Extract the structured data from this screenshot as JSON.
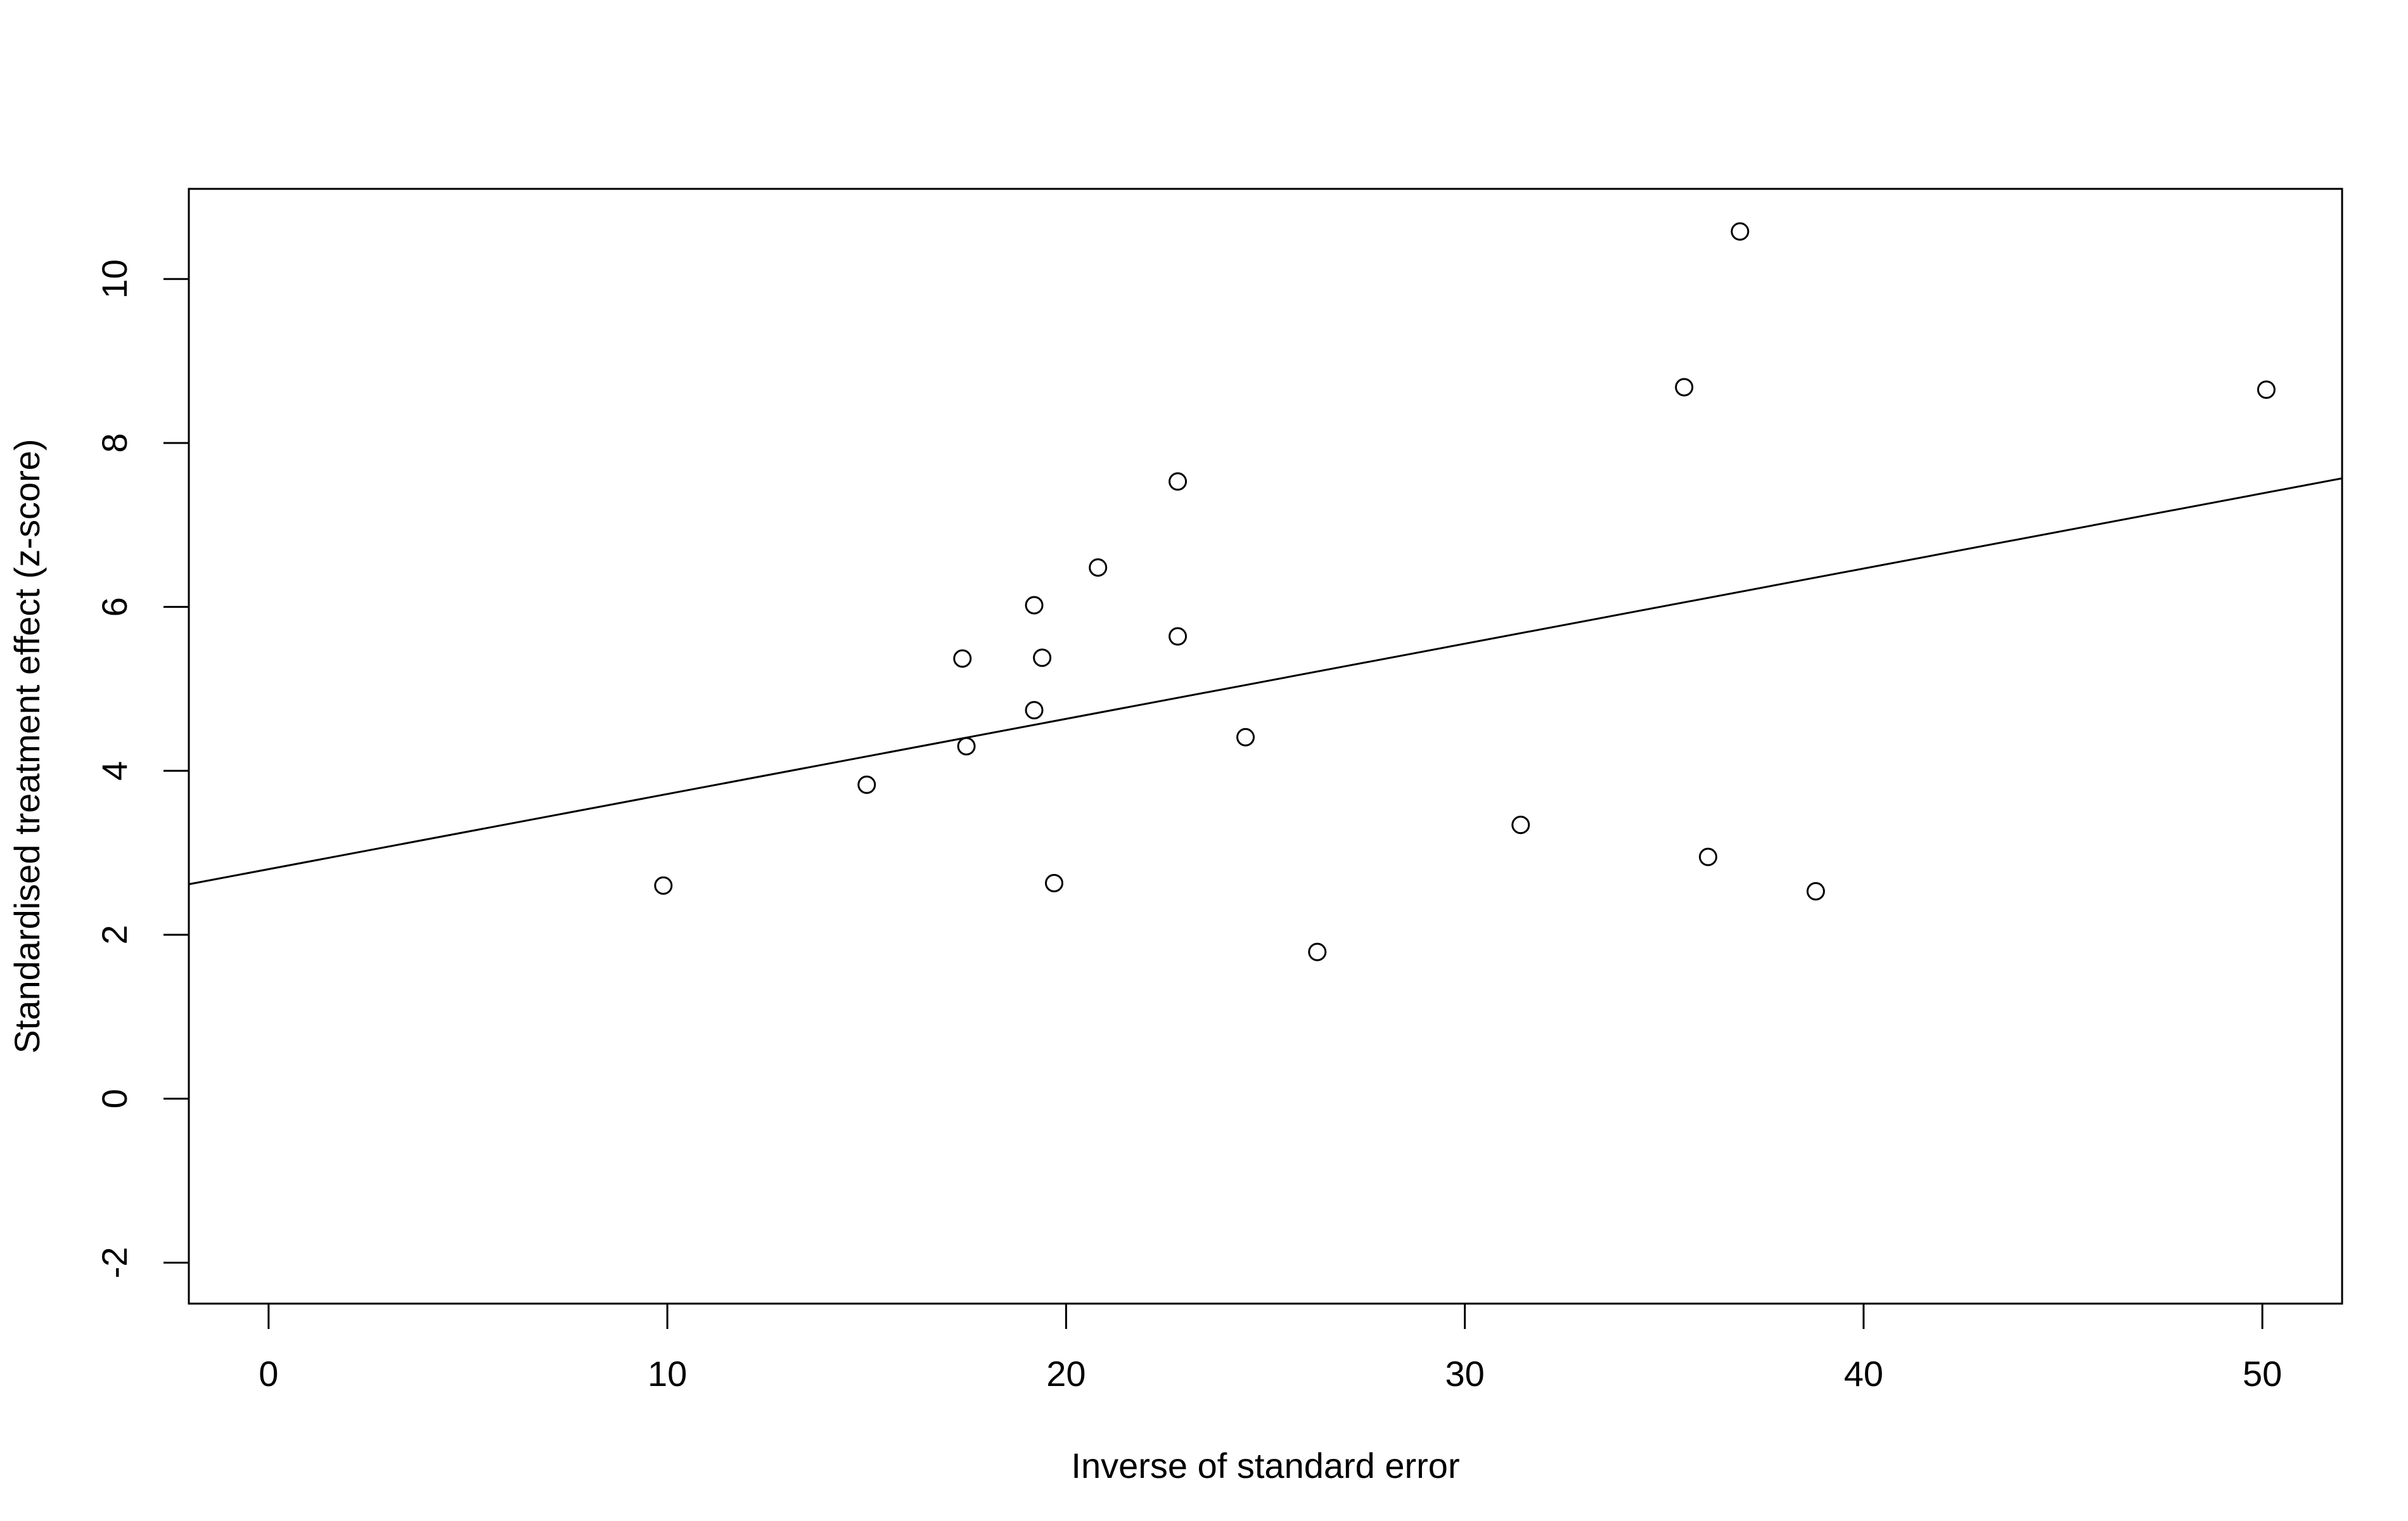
{
  "chart_data": {
    "type": "scatter",
    "title": "",
    "xlabel": "Inverse of standard error",
    "ylabel": "Standardised treatment effect (z-score)",
    "xlim": [
      -2,
      52
    ],
    "ylim": [
      -2.5,
      11.1
    ],
    "xticks": [
      0,
      10,
      20,
      30,
      40,
      50
    ],
    "yticks": [
      -2,
      0,
      2,
      4,
      6,
      8,
      10
    ],
    "grid": false,
    "legend": "none",
    "points": [
      {
        "x": 9.9,
        "y": 2.6
      },
      {
        "x": 15.0,
        "y": 3.83
      },
      {
        "x": 17.4,
        "y": 5.37
      },
      {
        "x": 17.5,
        "y": 4.3
      },
      {
        "x": 19.2,
        "y": 6.02
      },
      {
        "x": 19.2,
        "y": 4.74
      },
      {
        "x": 19.4,
        "y": 5.38
      },
      {
        "x": 19.7,
        "y": 2.63
      },
      {
        "x": 20.8,
        "y": 6.48
      },
      {
        "x": 22.8,
        "y": 7.53
      },
      {
        "x": 22.8,
        "y": 5.64
      },
      {
        "x": 24.5,
        "y": 4.41
      },
      {
        "x": 26.3,
        "y": 1.79
      },
      {
        "x": 31.4,
        "y": 3.34
      },
      {
        "x": 35.5,
        "y": 8.68
      },
      {
        "x": 36.9,
        "y": 10.58
      },
      {
        "x": 36.1,
        "y": 2.95
      },
      {
        "x": 38.8,
        "y": 2.53
      },
      {
        "x": 50.1,
        "y": 8.65
      }
    ],
    "regression_line": {
      "intercept": 2.8,
      "slope": 0.0917
    },
    "colors": {
      "points": "#000000",
      "line": "#000000",
      "background": "#ffffff"
    }
  }
}
